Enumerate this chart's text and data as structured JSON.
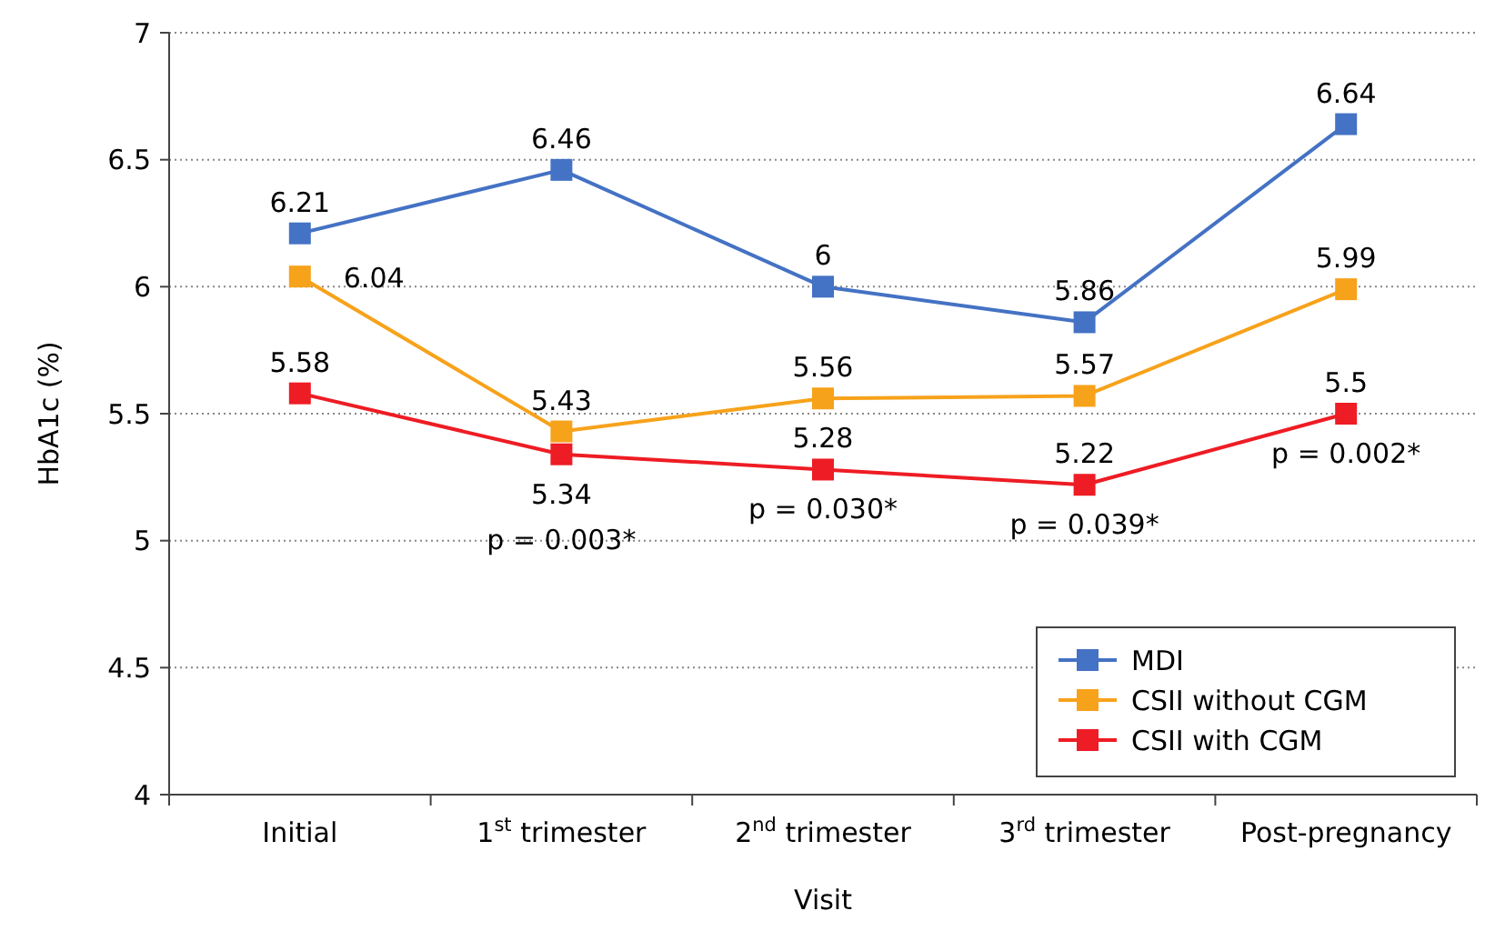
{
  "chart_data": {
    "type": "line",
    "xlabel": "Visit",
    "ylabel": "HbA1c (%)",
    "categories": [
      "Initial",
      "1$^{st}$ trimester",
      "2$^{nd}$ trimester",
      "3$^{rd}$ trimester",
      "Post-pregnancy"
    ],
    "series": [
      {
        "name": "MDI",
        "color": "#4472c4",
        "values": [
          6.21,
          6.46,
          6,
          5.86,
          6.64
        ]
      },
      {
        "name": "CSII without CGM",
        "color": "#f7a21b",
        "values": [
          6.04,
          5.43,
          5.56,
          5.57,
          5.99
        ]
      },
      {
        "name": "CSII with CGM",
        "color": "#ee1c24",
        "values": [
          5.58,
          5.34,
          5.28,
          5.22,
          5.5
        ]
      }
    ],
    "ylim": [
      4,
      7
    ],
    "yticks": [
      4,
      4.5,
      5,
      5.5,
      6,
      6.5,
      7
    ],
    "grid": "y",
    "legend": "bottom right",
    "marker": "square",
    "line_style": "solid",
    "data_labels": true,
    "annotations": [
      "p = 0.003*",
      "p = 0.030*",
      "p = 0.039*",
      "p = 0.002*"
    ]
  }
}
